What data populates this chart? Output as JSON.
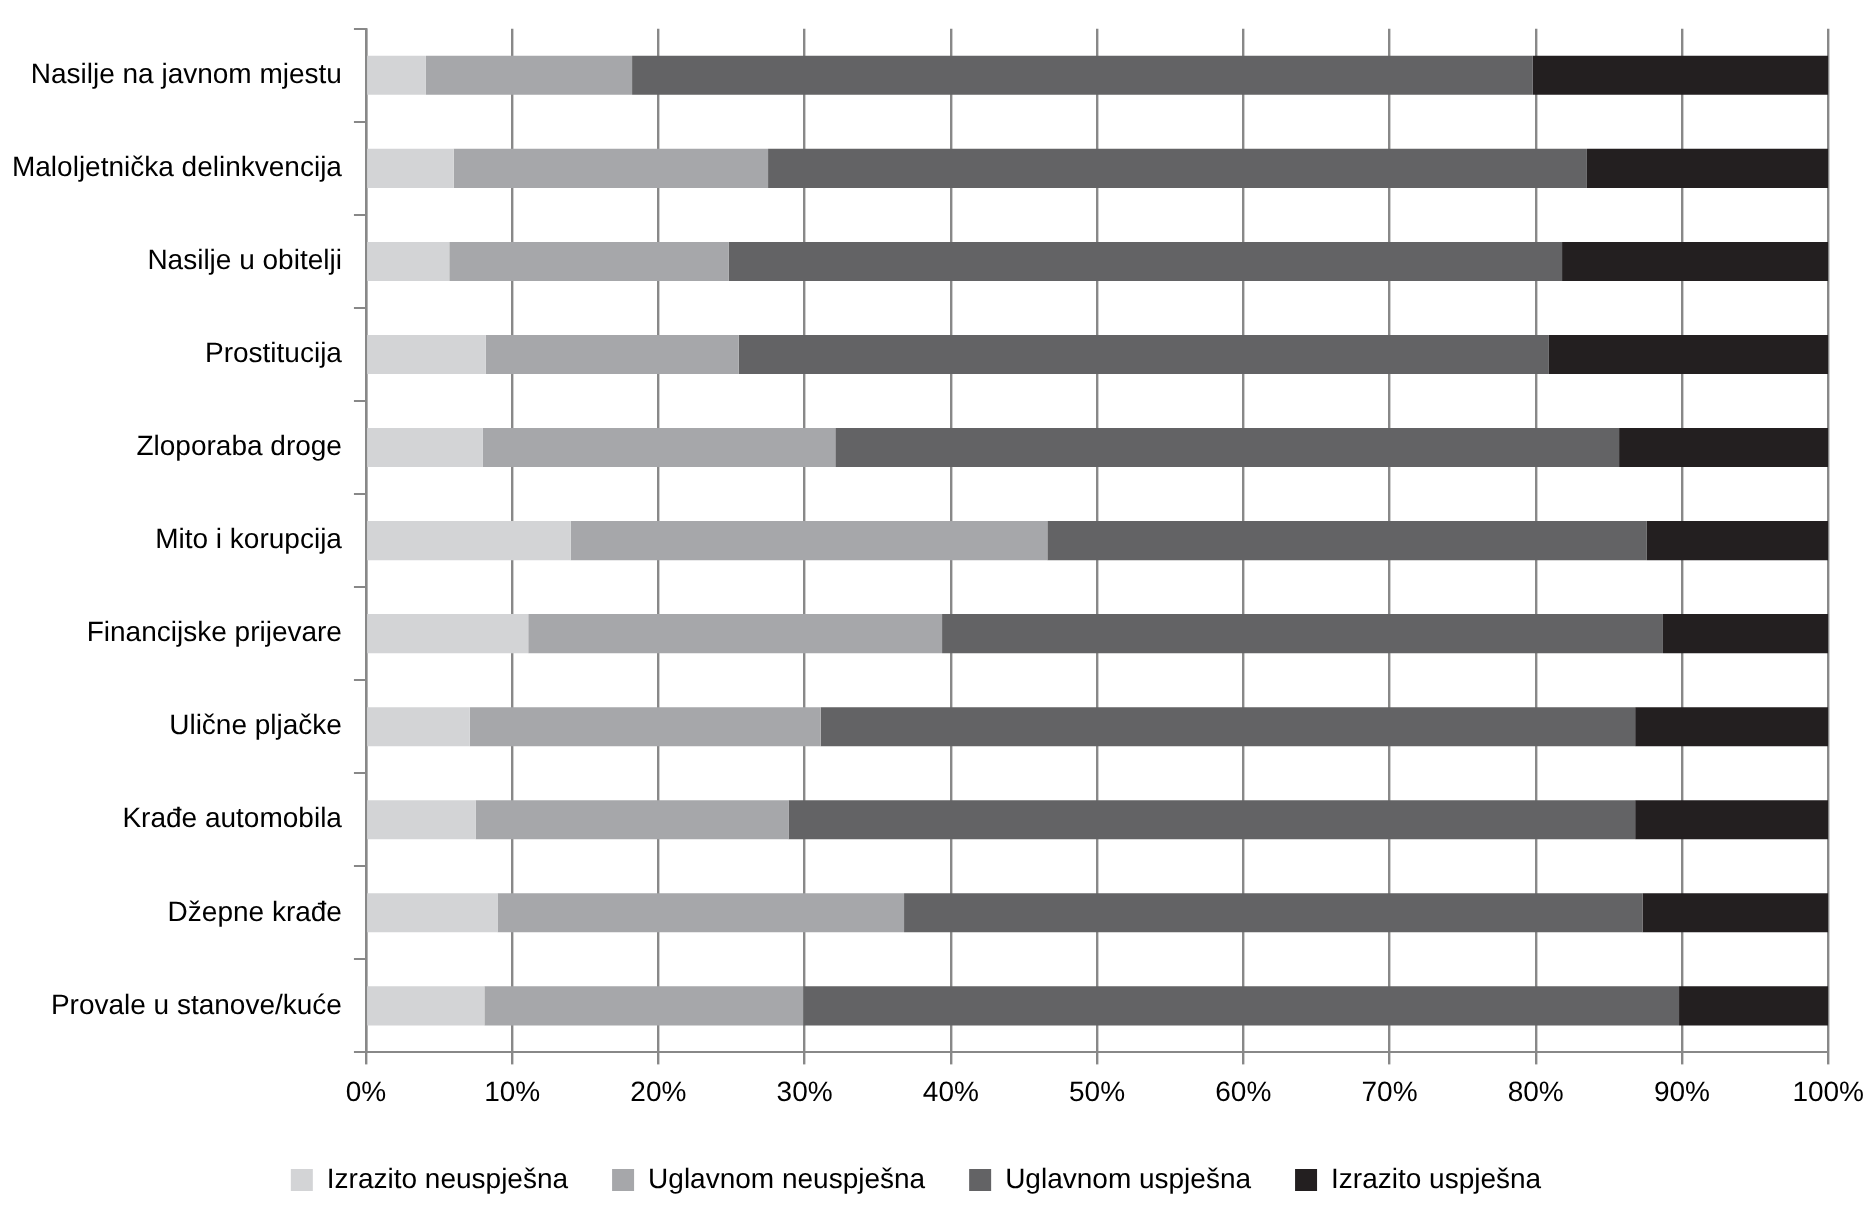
{
  "chart_data": {
    "type": "bar",
    "orientation": "horizontal",
    "stacked": true,
    "categories": [
      "Nasilje na javnom mjestu",
      "Maloljetnička delinkvencija",
      "Nasilje u obitelji",
      "Prostitucija",
      "Zloporaba droge",
      "Mito i korupcija",
      "Financijske prijevare",
      "Ulične pljačke",
      "Krađe automobila",
      "Džepne krađe",
      "Provale u stanove/kuće"
    ],
    "series": [
      {
        "name": "Izrazito neuspješna",
        "color": "#d3d4d6",
        "values": [
          4.1,
          6.0,
          5.7,
          8.2,
          8.0,
          14.0,
          11.1,
          7.1,
          7.5,
          9.0,
          8.1
        ]
      },
      {
        "name": "Uglavnom neuspješna",
        "color": "#a6a7aa",
        "values": [
          14.1,
          21.5,
          19.1,
          17.3,
          24.1,
          32.6,
          28.3,
          24.0,
          21.4,
          27.8,
          21.8
        ]
      },
      {
        "name": "Uglavnom uspješna",
        "color": "#636365",
        "values": [
          61.6,
          56.0,
          57.0,
          55.4,
          53.6,
          41.0,
          49.3,
          55.7,
          57.9,
          50.5,
          59.9
        ]
      },
      {
        "name": "Izrazito uspješna",
        "color": "#231f20",
        "values": [
          20.2,
          16.5,
          18.2,
          19.1,
          14.3,
          12.4,
          11.3,
          13.2,
          13.2,
          12.7,
          10.2
        ]
      }
    ],
    "xlim": [
      0,
      100
    ],
    "xticks": [
      {
        "value": 0,
        "label": "0%"
      },
      {
        "value": 10,
        "label": "10%"
      },
      {
        "value": 20,
        "label": "20%"
      },
      {
        "value": 30,
        "label": "30%"
      },
      {
        "value": 40,
        "label": "40%"
      },
      {
        "value": 50,
        "label": "50%"
      },
      {
        "value": 60,
        "label": "60%"
      },
      {
        "value": 70,
        "label": "70%"
      },
      {
        "value": 80,
        "label": "80%"
      },
      {
        "value": 90,
        "label": "90%"
      },
      {
        "value": 100,
        "label": "100%"
      }
    ],
    "grid": "x",
    "legend": "bottom"
  }
}
